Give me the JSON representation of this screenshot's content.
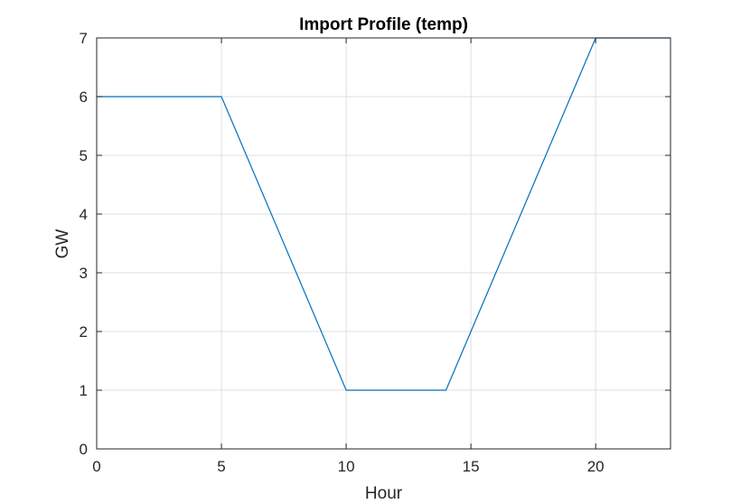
{
  "chart_data": {
    "type": "line",
    "title": "Import Profile (temp)",
    "xlabel": "Hour",
    "ylabel": "GW",
    "xlim": [
      0,
      23
    ],
    "ylim": [
      0,
      7
    ],
    "xticks": [
      0,
      5,
      10,
      15,
      20
    ],
    "yticks": [
      0,
      1,
      2,
      3,
      4,
      5,
      6,
      7
    ],
    "grid": true,
    "series": [
      {
        "color": "#0072BD",
        "x": [
          0,
          1,
          2,
          3,
          4,
          5,
          6,
          7,
          8,
          9,
          10,
          11,
          12,
          13,
          14,
          15,
          16,
          17,
          18,
          19,
          20,
          21,
          22,
          23
        ],
        "y": [
          6,
          6,
          6,
          6,
          6,
          6,
          5,
          4,
          3,
          2,
          1,
          1,
          1,
          1,
          1,
          2,
          3,
          4,
          5,
          6,
          7,
          7,
          7,
          7
        ]
      }
    ]
  }
}
